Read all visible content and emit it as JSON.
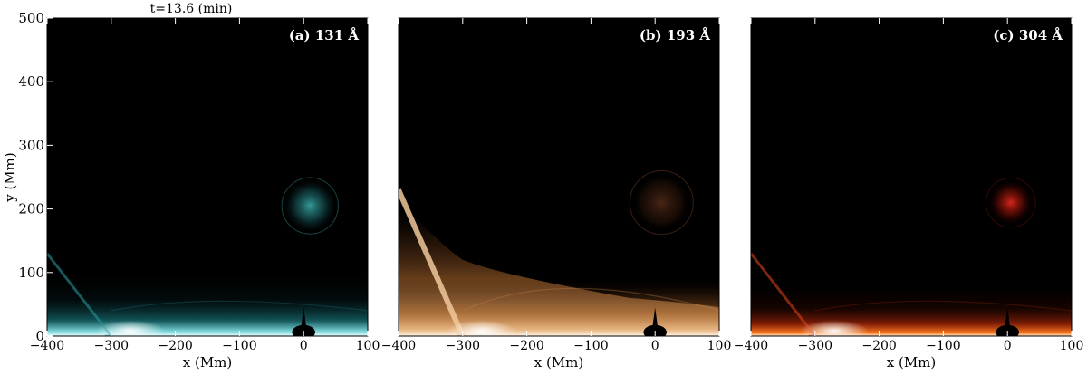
{
  "figure": {
    "time_label": "t=13.6 (min)"
  },
  "chart_data": [
    {
      "type": "heatmap",
      "id": "a",
      "title": "(a) 131 Å",
      "xlabel": "x  (Mm)",
      "ylabel": "y  (Mm)",
      "xlim": [
        -400,
        100
      ],
      "ylim": [
        0,
        500
      ],
      "xticks": [
        -400,
        -300,
        -200,
        -100,
        0,
        100
      ],
      "yticks": [
        0,
        100,
        200,
        300,
        400,
        500
      ],
      "colormap": {
        "low": "#000000",
        "mid": "#1d8f96",
        "high": "#e6ffff"
      },
      "features": [
        {
          "label": "eruption blob",
          "x": 10,
          "y": 205,
          "radius": 40
        },
        {
          "label": "bright footpoint layer",
          "x_range": [
            -400,
            100
          ],
          "y_range": [
            0,
            30
          ]
        },
        {
          "label": "shock front",
          "x": -300,
          "y": 0
        }
      ]
    },
    {
      "type": "heatmap",
      "id": "b",
      "title": "(b)  193 Å",
      "xlabel": "x  (Mm)",
      "ylabel": "",
      "xlim": [
        -400,
        100
      ],
      "ylim": [
        0,
        500
      ],
      "xticks": [
        -400,
        -300,
        -200,
        -100,
        0,
        100
      ],
      "yticks": [],
      "colormap": {
        "low": "#000000",
        "mid": "#a0602a",
        "high": "#fff6e6"
      },
      "features": [
        {
          "label": "eruption blob",
          "x": 10,
          "y": 210,
          "radius": 45
        },
        {
          "label": "bright dome",
          "x_range": [
            -400,
            100
          ],
          "y_range": [
            0,
            200
          ]
        },
        {
          "label": "shock front",
          "x": -300,
          "y": 0
        }
      ]
    },
    {
      "type": "heatmap",
      "id": "c",
      "title": "(c)  304 Å",
      "xlabel": "x  (Mm)",
      "ylabel": "",
      "xlim": [
        -400,
        100
      ],
      "ylim": [
        0,
        500
      ],
      "xticks": [
        -400,
        -300,
        -200,
        -100,
        0,
        100
      ],
      "yticks": [],
      "colormap": {
        "low": "#000000",
        "mid": "#c8300a",
        "high": "#ffe6c8"
      },
      "features": [
        {
          "label": "eruption blob",
          "x": 5,
          "y": 210,
          "radius": 35
        },
        {
          "label": "bright footpoint layer",
          "x_range": [
            -400,
            100
          ],
          "y_range": [
            0,
            25
          ]
        },
        {
          "label": "shock front",
          "x": -300,
          "y": 0
        }
      ]
    }
  ]
}
